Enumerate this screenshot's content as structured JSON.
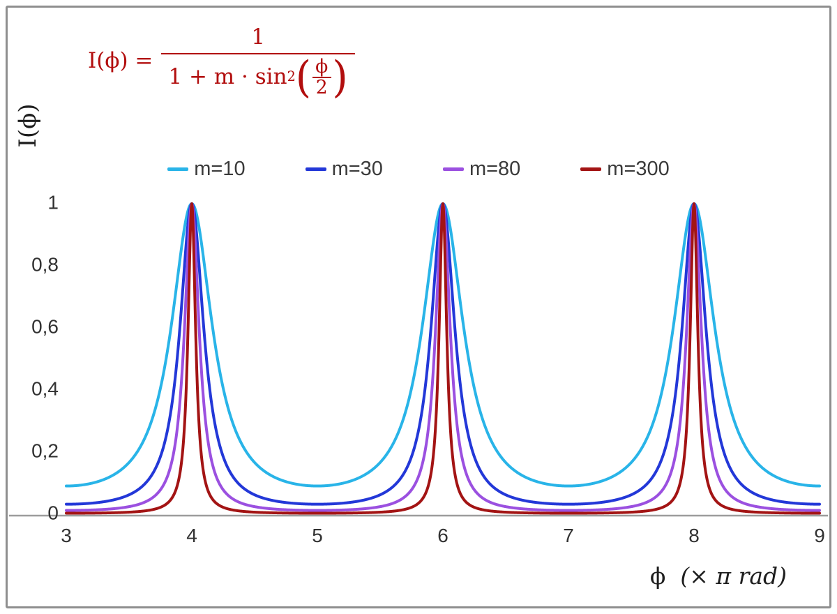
{
  "formula": {
    "lhs": "I(ϕ) =",
    "numerator": "1",
    "den_prefix": "1 + m · sin",
    "den_sup": "2",
    "paren_open": "(",
    "paren_close": ")",
    "inner_numerator": "ϕ",
    "inner_denominator": "2",
    "color": "#b20e0e"
  },
  "axes": {
    "y_label": "I(ϕ)",
    "x_label_phi": "ϕ",
    "x_label_rest": "(× π rad)",
    "x_ticks": [
      3,
      4,
      5,
      6,
      7,
      8,
      9
    ],
    "x_tick_labels": [
      "3",
      "4",
      "5",
      "6",
      "7",
      "8",
      "9"
    ],
    "y_ticks": [
      0,
      0.2,
      0.4,
      0.6,
      0.8,
      1
    ],
    "y_tick_labels": [
      "0",
      "0,2",
      "0,4",
      "0,6",
      "0,8",
      "1"
    ],
    "xlim": [
      3,
      9
    ],
    "ylim": [
      0,
      1
    ]
  },
  "chart_data": {
    "type": "line",
    "title": "",
    "function": "I(ϕ) = 1 / (1 + m · sin²(ϕ/2))",
    "x_unit": "× π rad",
    "x_range": [
      3,
      9
    ],
    "xlim": [
      3,
      9
    ],
    "ylim": [
      0,
      1
    ],
    "grid": false,
    "legend_position": "top-center",
    "peaks_at_x": [
      4,
      6,
      8
    ],
    "peak_value": 1,
    "series": [
      {
        "name": "m=10",
        "m": 10,
        "color": "#29b4e8",
        "min_value": 0.0909
      },
      {
        "name": "m=30",
        "m": 30,
        "color": "#2338d8",
        "min_value": 0.0323
      },
      {
        "name": "m=80",
        "m": 80,
        "color": "#9b50e0",
        "min_value": 0.0123
      },
      {
        "name": "m=300",
        "m": 300,
        "color": "#a31414",
        "min_value": 0.0033
      }
    ]
  },
  "colors": {
    "frame": "#8f8f8f",
    "axis_line": "#9c9c9c",
    "tick_text": "#323232"
  }
}
